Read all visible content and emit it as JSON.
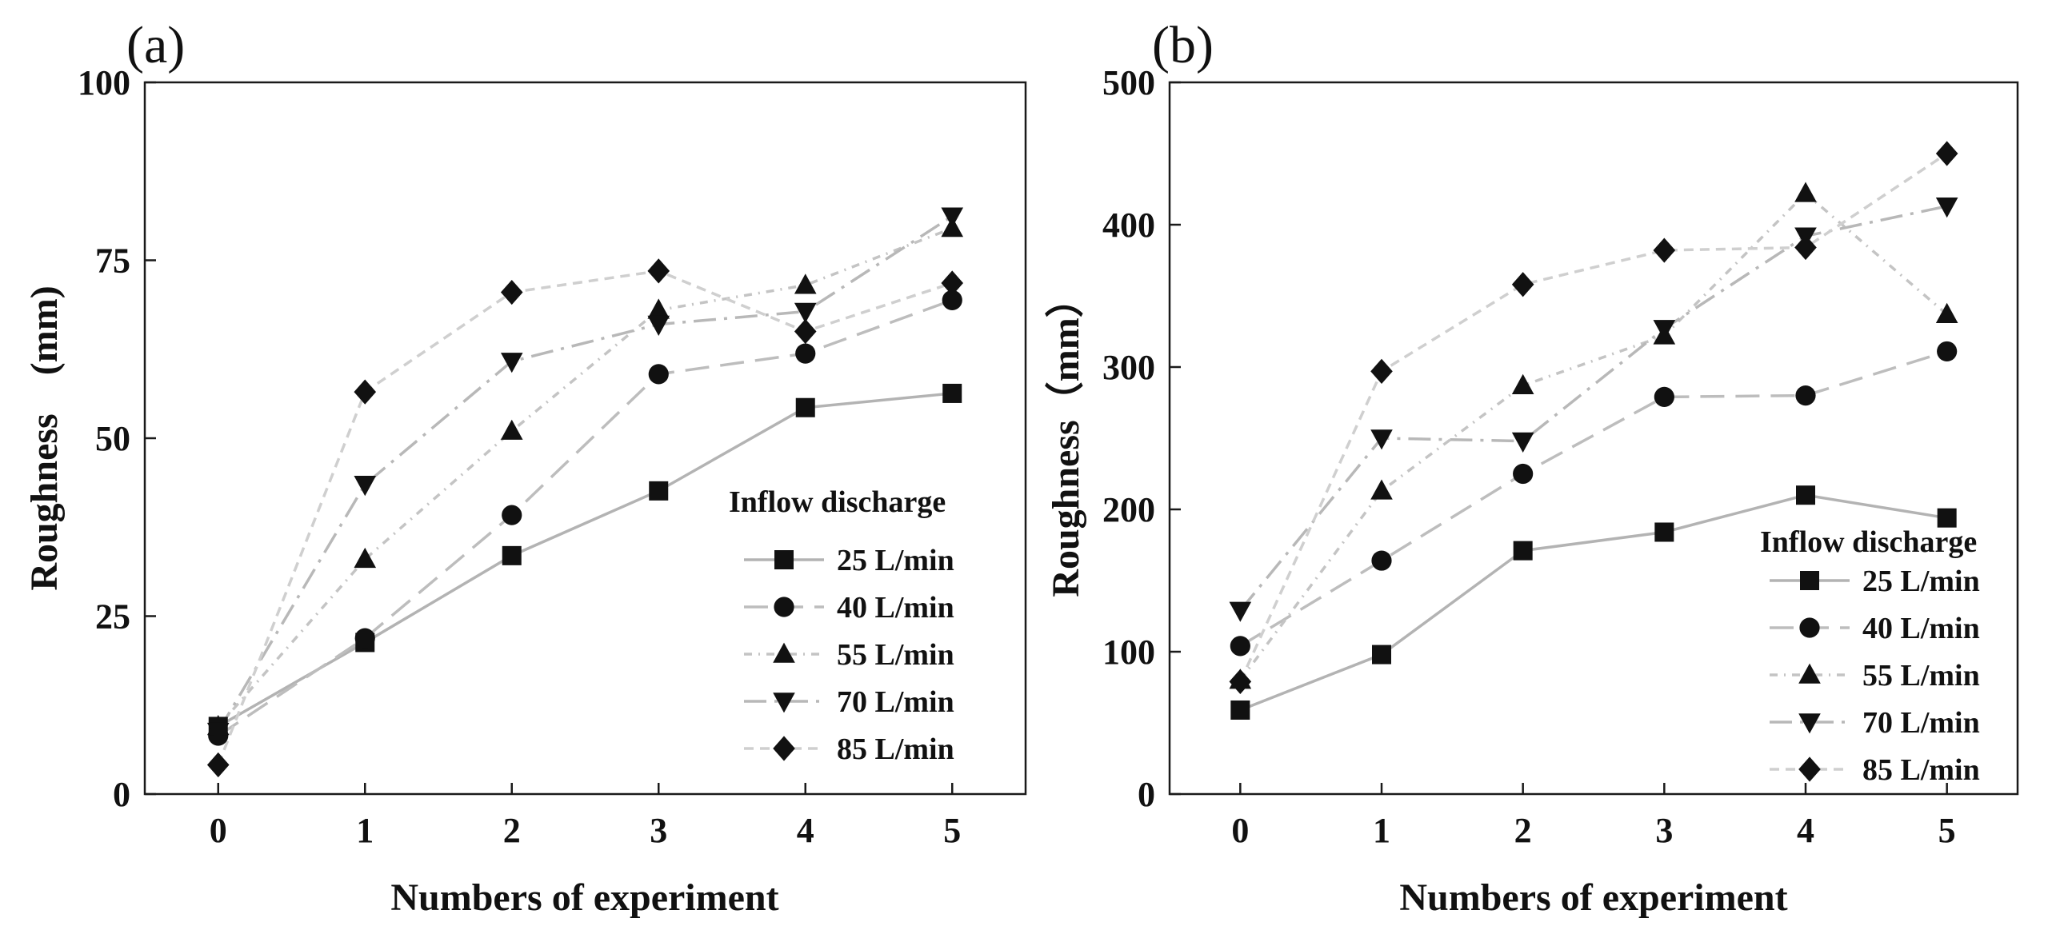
{
  "chart_data": [
    {
      "type": "line",
      "panel_label": "(a)",
      "xlabel": "Numbers of experiment",
      "ylabel": "Roughness　(mm)",
      "x": [
        0,
        1,
        2,
        3,
        4,
        5
      ],
      "xticks": [
        "0",
        "1",
        "2",
        "3",
        "4",
        "5"
      ],
      "xlim": [
        -0.5,
        5.5
      ],
      "ylim": [
        0,
        100
      ],
      "yticks": [
        "0",
        "25",
        "50",
        "75",
        "100"
      ],
      "legend_title": "Inflow discharge",
      "legend_position": "lower-right",
      "series": [
        {
          "name": "25 L/min",
          "marker": "square",
          "values": [
            9.5,
            21.3,
            33.5,
            42.6,
            54.3,
            56.3
          ]
        },
        {
          "name": "40 L/min",
          "marker": "circle",
          "values": [
            8.2,
            21.9,
            39.2,
            59,
            61.9,
            69.4
          ]
        },
        {
          "name": "55 L/min",
          "marker": "triangle-up",
          "values": [
            9.5,
            33,
            51,
            68,
            71.5,
            79.5
          ]
        },
        {
          "name": "70 L/min",
          "marker": "triangle-down",
          "values": [
            8.8,
            43.5,
            60.8,
            66,
            67.8,
            81.2
          ]
        },
        {
          "name": "85 L/min",
          "marker": "diamond",
          "values": [
            4.1,
            56.5,
            70.5,
            73.5,
            65,
            71.8
          ]
        }
      ]
    },
    {
      "type": "line",
      "panel_label": "(b)",
      "xlabel": "Numbers of experiment",
      "ylabel": "Roughness（mm）",
      "x": [
        0,
        1,
        2,
        3,
        4,
        5
      ],
      "xticks": [
        "0",
        "1",
        "2",
        "3",
        "4",
        "5"
      ],
      "xlim": [
        -0.5,
        5.5
      ],
      "ylim": [
        0,
        500
      ],
      "yticks": [
        "0",
        "100",
        "200",
        "300",
        "400",
        "500"
      ],
      "legend_title": "Inflow discharge",
      "legend_position": "lower-right",
      "series": [
        {
          "name": "25 L/min",
          "marker": "square",
          "values": [
            59,
            98,
            171,
            184,
            210,
            194
          ]
        },
        {
          "name": "40 L/min",
          "marker": "circle",
          "values": [
            104,
            164,
            225,
            279,
            280,
            311
          ]
        },
        {
          "name": "55 L/min",
          "marker": "triangle-up",
          "values": [
            80,
            213,
            287,
            322,
            422,
            337
          ]
        },
        {
          "name": "70 L/min",
          "marker": "triangle-down",
          "values": [
            129,
            250,
            248,
            327,
            392,
            413
          ]
        },
        {
          "name": "85 L/min",
          "marker": "diamond",
          "values": [
            79,
            297,
            358,
            382,
            384,
            450
          ]
        }
      ]
    }
  ],
  "style": {
    "axis_color": "#1a1a1a",
    "marker_color": "#111111",
    "series_line_colors": [
      "#b3b3b3",
      "#bdbdbd",
      "#c4c4c4",
      "#b8b8b8",
      "#cfcfcf"
    ],
    "series_dashes": [
      "",
      "30,14",
      "10,8,2,8",
      "28,10,4,10",
      "12,8"
    ]
  }
}
